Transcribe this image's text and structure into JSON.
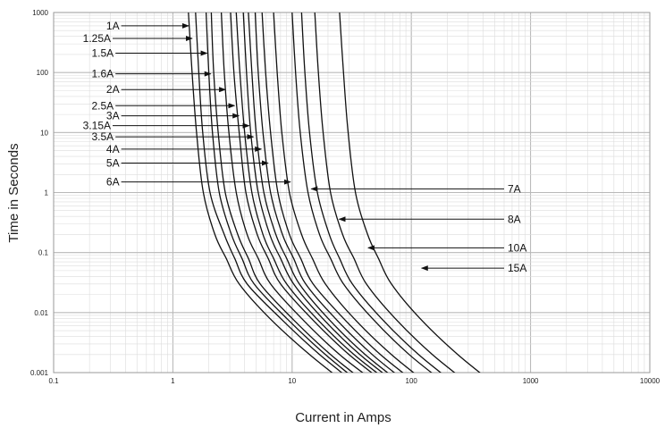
{
  "chart_data": {
    "type": "line",
    "title": "",
    "xlabel": "Current in Amps",
    "ylabel": "Time in Seconds",
    "x_scale": "log",
    "y_scale": "log",
    "xlim": [
      0.1,
      10000
    ],
    "ylim": [
      0.001,
      1000
    ],
    "grid": true,
    "x_ticks": [
      "0.1",
      "1",
      "10",
      "100",
      "1000",
      "10000"
    ],
    "y_ticks": [
      "0.001",
      "0.01",
      "0.1",
      "1",
      "10",
      "100",
      "1000"
    ],
    "series": [
      {
        "name": "1A",
        "x": [
          1.35,
          1.45,
          1.58,
          1.8,
          2.25,
          2.8,
          3.6,
          6.5,
          14,
          30
        ],
        "y": [
          1000,
          100,
          10,
          1,
          0.2,
          0.08,
          0.03,
          0.008,
          0.002,
          0.0006
        ]
      },
      {
        "name": "1.25A",
        "x": [
          1.55,
          1.65,
          1.78,
          2.05,
          2.7,
          3.3,
          4.2,
          8,
          17,
          36
        ],
        "y": [
          1000,
          100,
          10,
          1,
          0.2,
          0.08,
          0.03,
          0.008,
          0.002,
          0.0006
        ]
      },
      {
        "name": "1.5A",
        "x": [
          1.9,
          2.0,
          2.15,
          2.45,
          3.1,
          3.8,
          4.8,
          9,
          19,
          40
        ],
        "y": [
          1000,
          100,
          10,
          1,
          0.2,
          0.08,
          0.03,
          0.008,
          0.002,
          0.0006
        ]
      },
      {
        "name": "1.6A",
        "x": [
          2.1,
          2.2,
          2.4,
          2.75,
          3.5,
          4.3,
          5.4,
          10,
          21,
          45
        ],
        "y": [
          1000,
          100,
          10,
          1,
          0.2,
          0.08,
          0.03,
          0.008,
          0.002,
          0.0006
        ]
      },
      {
        "name": "2A",
        "x": [
          2.55,
          2.7,
          2.95,
          3.4,
          4.2,
          5.2,
          6.6,
          12,
          25,
          55
        ],
        "y": [
          1000,
          100,
          10,
          1,
          0.2,
          0.08,
          0.03,
          0.008,
          0.002,
          0.0006
        ]
      },
      {
        "name": "2.5A",
        "x": [
          3.05,
          3.25,
          3.6,
          4.1,
          5.1,
          6.3,
          8,
          14.5,
          30,
          65
        ],
        "y": [
          1000,
          100,
          10,
          1,
          0.2,
          0.08,
          0.03,
          0.008,
          0.002,
          0.0006
        ]
      },
      {
        "name": "3A",
        "x": [
          3.4,
          3.65,
          4.0,
          4.6,
          5.7,
          7.0,
          9.0,
          16,
          33,
          72
        ],
        "y": [
          1000,
          100,
          10,
          1,
          0.2,
          0.08,
          0.03,
          0.008,
          0.002,
          0.0006
        ]
      },
      {
        "name": "3.15A",
        "x": [
          3.9,
          4.15,
          4.5,
          5.2,
          6.5,
          8.0,
          10.3,
          18,
          37,
          80
        ],
        "y": [
          1000,
          100,
          10,
          1,
          0.2,
          0.08,
          0.03,
          0.008,
          0.002,
          0.0006
        ]
      },
      {
        "name": "3.5A",
        "x": [
          4.3,
          4.6,
          5.0,
          5.8,
          7.3,
          9.0,
          11.5,
          20,
          41,
          88
        ],
        "y": [
          1000,
          100,
          10,
          1,
          0.2,
          0.08,
          0.03,
          0.008,
          0.002,
          0.0006
        ]
      },
      {
        "name": "4A",
        "x": [
          4.9,
          5.2,
          5.7,
          6.6,
          8.3,
          10.3,
          13,
          23,
          47,
          100
        ],
        "y": [
          1000,
          100,
          10,
          1,
          0.2,
          0.08,
          0.03,
          0.008,
          0.002,
          0.0006
        ]
      },
      {
        "name": "5A",
        "x": [
          5.6,
          6.0,
          6.6,
          7.6,
          9.5,
          11.8,
          15,
          27,
          55,
          118
        ],
        "y": [
          1000,
          100,
          10,
          1,
          0.2,
          0.08,
          0.03,
          0.008,
          0.002,
          0.0006
        ]
      },
      {
        "name": "6A",
        "x": [
          7.0,
          7.5,
          8.2,
          9.5,
          12,
          14.8,
          19,
          33,
          68,
          145
        ],
        "y": [
          1000,
          100,
          10,
          1,
          0.2,
          0.08,
          0.03,
          0.008,
          0.002,
          0.0006
        ]
      },
      {
        "name": "7A",
        "x": [
          10,
          10.7,
          11.7,
          13.6,
          17,
          21,
          27,
          47,
          96,
          205
        ],
        "y": [
          1000,
          100,
          10,
          1,
          0.2,
          0.08,
          0.03,
          0.008,
          0.002,
          0.0006
        ]
      },
      {
        "name": "8A",
        "x": [
          12,
          12.8,
          14,
          16.3,
          20.5,
          25,
          32,
          56,
          115,
          245
        ],
        "y": [
          1000,
          100,
          10,
          1,
          0.2,
          0.08,
          0.03,
          0.008,
          0.002,
          0.0006
        ]
      },
      {
        "name": "10A",
        "x": [
          15.5,
          16.6,
          18.2,
          21,
          26.5,
          33,
          42,
          73,
          150,
          320
        ],
        "y": [
          1000,
          100,
          10,
          1,
          0.2,
          0.08,
          0.03,
          0.008,
          0.002,
          0.0006
        ]
      },
      {
        "name": "15A",
        "x": [
          25,
          27,
          29.5,
          34,
          43,
          53,
          68,
          118,
          245,
          520
        ],
        "y": [
          1000,
          100,
          10,
          1,
          0.2,
          0.08,
          0.03,
          0.008,
          0.002,
          0.0006
        ]
      }
    ],
    "annotations": [
      {
        "text": "1A",
        "target_series": "1A",
        "x": 1.4,
        "y": 600
      },
      {
        "text": "1.25A",
        "target_series": "1.25A",
        "x": 1.5,
        "y": 370
      },
      {
        "text": "1.5A",
        "target_series": "1.5A",
        "x": 2.0,
        "y": 210
      },
      {
        "text": "1.6A",
        "target_series": "1.6A",
        "x": 2.15,
        "y": 95
      },
      {
        "text": "2A",
        "target_series": "2A",
        "x": 2.85,
        "y": 52
      },
      {
        "text": "2.5A",
        "target_series": "2.5A",
        "x": 3.4,
        "y": 28
      },
      {
        "text": "3A",
        "target_series": "3A",
        "x": 3.7,
        "y": 19
      },
      {
        "text": "3.15A",
        "target_series": "3.15A",
        "x": 4.5,
        "y": 13
      },
      {
        "text": "3.5A",
        "target_series": "3.5A",
        "x": 4.9,
        "y": 8.5
      },
      {
        "text": "4A",
        "target_series": "4A",
        "x": 5.7,
        "y": 5.3
      },
      {
        "text": "5A",
        "target_series": "5A",
        "x": 6.5,
        "y": 3.1
      },
      {
        "text": "6A",
        "target_series": "6A",
        "x": 10,
        "y": 1.5
      },
      {
        "text": "7A",
        "target_series": "7A",
        "x": 14,
        "y": 1.15
      },
      {
        "text": "8A",
        "target_series": "8A",
        "x": 24,
        "y": 0.36
      },
      {
        "text": "10A",
        "target_series": "10A",
        "x": 42,
        "y": 0.12
      },
      {
        "text": "15A",
        "target_series": "15A",
        "x": 118,
        "y": 0.055
      }
    ]
  }
}
